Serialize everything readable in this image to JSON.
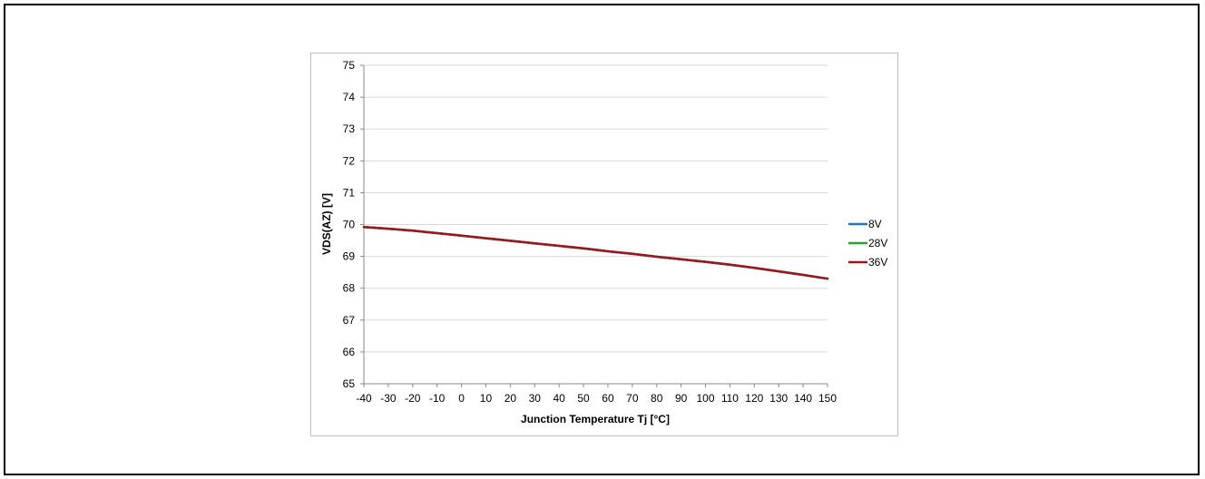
{
  "chart_data": {
    "type": "line",
    "xlabel": "Junction Temperature Tj [°C]",
    "ylabel": "VDS(AZ) [V]",
    "xlim": [
      -40,
      150
    ],
    "ylim": [
      65,
      75
    ],
    "x_ticks": [
      -40,
      -30,
      -20,
      -10,
      0,
      10,
      20,
      30,
      40,
      50,
      60,
      70,
      80,
      90,
      100,
      110,
      120,
      130,
      140,
      150
    ],
    "y_ticks": [
      65,
      66,
      67,
      68,
      69,
      70,
      71,
      72,
      73,
      74,
      75
    ],
    "grid": "horizontal",
    "legend_position": "right",
    "x": [
      -40,
      -30,
      -20,
      -10,
      0,
      10,
      20,
      30,
      40,
      50,
      60,
      70,
      80,
      90,
      100,
      110,
      120,
      130,
      140,
      150
    ],
    "series": [
      {
        "name": "8V",
        "color": "#1f77b4",
        "values": [
          69.92,
          69.87,
          69.81,
          69.73,
          69.65,
          69.57,
          69.49,
          69.41,
          69.33,
          69.25,
          69.16,
          69.08,
          68.99,
          68.91,
          68.83,
          68.74,
          68.64,
          68.53,
          68.42,
          68.3
        ]
      },
      {
        "name": "28V",
        "color": "#2ca02c",
        "values": [
          69.92,
          69.87,
          69.81,
          69.73,
          69.65,
          69.57,
          69.49,
          69.41,
          69.33,
          69.25,
          69.16,
          69.08,
          68.99,
          68.91,
          68.83,
          68.74,
          68.64,
          68.53,
          68.42,
          68.3
        ]
      },
      {
        "name": "36V",
        "color": "#a0141e",
        "values": [
          69.92,
          69.87,
          69.81,
          69.73,
          69.65,
          69.57,
          69.49,
          69.41,
          69.33,
          69.25,
          69.16,
          69.08,
          68.99,
          68.91,
          68.83,
          68.74,
          68.64,
          68.53,
          68.42,
          68.3
        ]
      }
    ]
  }
}
